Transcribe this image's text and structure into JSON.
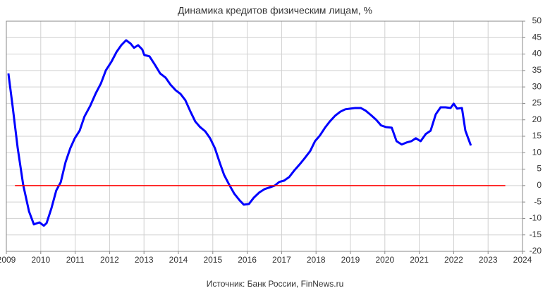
{
  "chart_data": {
    "type": "line",
    "title": "Динамика  кредитов физическим лицам, %",
    "source": "Источник: Банк России, FinNews.ru",
    "xlim": [
      2009,
      2024
    ],
    "xticks": [
      2009,
      2010,
      2011,
      2012,
      2013,
      2014,
      2015,
      2016,
      2017,
      2018,
      2019,
      2020,
      2021,
      2022,
      2023,
      2024
    ],
    "ylim": [
      -20,
      50
    ],
    "yticks": [
      -20,
      -15,
      -10,
      -5,
      0,
      5,
      10,
      15,
      20,
      25,
      30,
      35,
      40,
      45,
      50
    ],
    "grid": true,
    "series": [
      {
        "color": "#0000ff",
        "x": [
          2009.06,
          2009.18,
          2009.33,
          2009.49,
          2009.66,
          2009.8,
          2009.96,
          2010.09,
          2010.17,
          2010.31,
          2010.45,
          2010.58,
          2010.72,
          2010.86,
          2010.99,
          2011.13,
          2011.27,
          2011.44,
          2011.6,
          2011.75,
          2011.89,
          2012.05,
          2012.2,
          2012.34,
          2012.48,
          2012.61,
          2012.71,
          2012.83,
          2012.95,
          2013.01,
          2013.16,
          2013.32,
          2013.47,
          2013.63,
          2013.77,
          2013.92,
          2014.06,
          2014.2,
          2014.35,
          2014.49,
          2014.63,
          2014.78,
          2014.92,
          2015.06,
          2015.21,
          2015.33,
          2015.48,
          2015.62,
          2015.78,
          2015.9,
          2016.05,
          2016.19,
          2016.35,
          2016.5,
          2016.64,
          2016.8,
          2016.93,
          2017.07,
          2017.22,
          2017.36,
          2017.52,
          2017.66,
          2017.83,
          2017.97,
          2018.11,
          2018.26,
          2018.4,
          2018.56,
          2018.71,
          2018.85,
          2018.99,
          2019.14,
          2019.3,
          2019.44,
          2019.59,
          2019.75,
          2019.89,
          2020.03,
          2020.2,
          2020.34,
          2020.49,
          2020.63,
          2020.77,
          2020.9,
          2021.04,
          2021.19,
          2021.33,
          2021.48,
          2021.62,
          2021.76,
          2021.91,
          2022.0,
          2022.1,
          2022.24,
          2022.34,
          2022.5
        ],
        "values": [
          34.1,
          24.3,
          11.4,
          0.2,
          -7.9,
          -11.8,
          -11.2,
          -12.2,
          -11.4,
          -6.9,
          -1.5,
          1,
          7.1,
          11.4,
          14.4,
          16.7,
          21,
          24.3,
          28.1,
          31.1,
          35,
          37.6,
          40.6,
          42.7,
          44.2,
          43.2,
          41.9,
          42.7,
          41.4,
          39.7,
          39.3,
          36.7,
          34.1,
          32.8,
          30.7,
          29,
          27.9,
          26,
          22.5,
          19.5,
          17.8,
          16.5,
          14.4,
          11.4,
          6.7,
          3.2,
          0.2,
          -2.4,
          -4.5,
          -5.8,
          -5.6,
          -3.7,
          -2.1,
          -1.1,
          -0.6,
          0,
          1.1,
          1.5,
          2.6,
          4.5,
          6.4,
          8.2,
          10.5,
          13.5,
          15.2,
          17.6,
          19.5,
          21.3,
          22.5,
          23.2,
          23.4,
          23.6,
          23.6,
          22.8,
          21.5,
          20,
          18.3,
          17.8,
          17.6,
          13.5,
          12.5,
          13.1,
          13.5,
          14.4,
          13.5,
          15.7,
          16.7,
          21.7,
          23.8,
          23.8,
          23.6,
          24.9,
          23.4,
          23.6,
          16.7,
          12.2
        ],
        "width": 3
      },
      {
        "color": "#ff0000",
        "x": [
          2009.25,
          2023.5
        ],
        "values": [
          0,
          0
        ],
        "width": 1.5
      }
    ]
  }
}
